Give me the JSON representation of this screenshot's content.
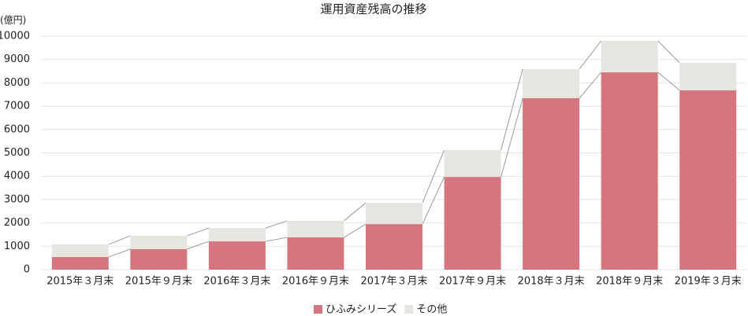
{
  "chart_data": {
    "type": "stacked-bar",
    "title": "運用資産残高の推移",
    "y_label": "(億円)",
    "categories": [
      "2015年３月末",
      "2015年９月末",
      "2016年３月末",
      "2016年９月末",
      "2017年３月末",
      "2017年９月末",
      "2018年３月末",
      "2018年９月末",
      "2019年３月末"
    ],
    "series": [
      {
        "name": "ひふみシリーズ",
        "color": "#d5757e",
        "values": [
          540,
          880,
          1210,
          1380,
          1950,
          3970,
          7340,
          8450,
          7680
        ]
      },
      {
        "name": "その他",
        "color": "#e6e5df",
        "values": [
          540,
          570,
          570,
          710,
          910,
          1150,
          1250,
          1350,
          1180
        ]
      }
    ],
    "ylim": [
      0,
      10000
    ],
    "yticks": [
      0,
      1000,
      2000,
      3000,
      4000,
      5000,
      6000,
      7000,
      8000,
      9000,
      10000
    ],
    "grid": true
  }
}
